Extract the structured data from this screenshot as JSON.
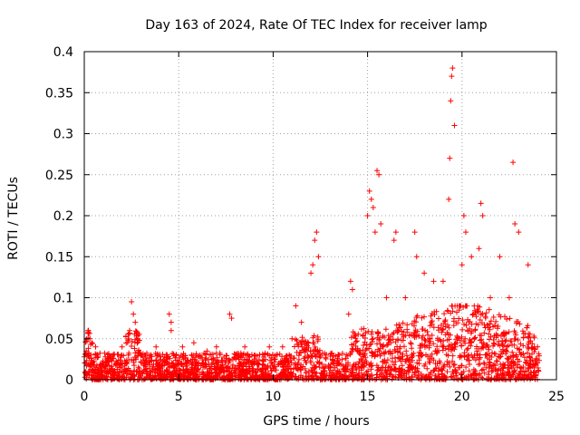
{
  "chart_data": {
    "type": "scatter",
    "title": "Day 163 of 2024, Rate Of TEC Index for receiver lamp",
    "xlabel": "GPS time / hours",
    "ylabel": "ROTI / TECUs",
    "xlim": [
      0,
      25
    ],
    "ylim": [
      0,
      0.4
    ],
    "xticks": [
      0,
      5,
      10,
      15,
      20,
      25
    ],
    "xtick_labels": [
      "0",
      "5",
      "10",
      "15",
      "20",
      "25"
    ],
    "yticks": [
      0,
      0.05,
      0.1,
      0.15,
      0.2,
      0.25,
      0.3,
      0.35,
      0.4
    ],
    "ytick_labels": [
      "0",
      "0.05",
      "0.1",
      "0.15",
      "0.2",
      "0.25",
      "0.3",
      "0.35",
      "0.4"
    ],
    "grid": true,
    "marker": "+",
    "series": [
      {
        "name": "ROTI",
        "color": "#ff0000",
        "x": [
          0.2,
          0.3,
          0.4,
          0.6,
          1.0,
          1.5,
          2.0,
          2.4,
          2.5,
          2.6,
          2.7,
          3.2,
          3.8,
          4.5,
          4.6,
          4.6,
          5.2,
          5.8,
          6.5,
          7.0,
          7.7,
          7.8,
          8.5,
          9.0,
          9.8,
          10.5,
          11.0,
          11.2,
          11.5,
          12.0,
          12.1,
          12.2,
          12.3,
          12.4,
          13.5,
          14.0,
          14.1,
          14.2,
          15.0,
          15.1,
          15.2,
          15.3,
          15.4,
          15.5,
          15.6,
          15.7,
          16.0,
          16.4,
          16.5,
          17.0,
          17.5,
          17.6,
          18.0,
          18.5,
          19.0,
          19.3,
          19.35,
          19.4,
          19.45,
          19.5,
          19.6,
          20.0,
          20.1,
          20.2,
          20.5,
          20.9,
          21.0,
          21.1,
          21.5,
          22.0,
          22.5,
          22.7,
          22.8,
          23.0,
          23.5,
          24.0
        ],
        "y": [
          0.06,
          0.05,
          0.045,
          0.04,
          0.02,
          0.03,
          0.04,
          0.06,
          0.095,
          0.08,
          0.07,
          0.03,
          0.04,
          0.08,
          0.07,
          0.06,
          0.04,
          0.045,
          0.035,
          0.04,
          0.08,
          0.075,
          0.04,
          0.03,
          0.04,
          0.04,
          0.05,
          0.09,
          0.07,
          0.13,
          0.14,
          0.17,
          0.18,
          0.15,
          0.03,
          0.08,
          0.12,
          0.11,
          0.2,
          0.23,
          0.22,
          0.21,
          0.18,
          0.255,
          0.25,
          0.19,
          0.1,
          0.17,
          0.18,
          0.1,
          0.18,
          0.15,
          0.13,
          0.12,
          0.12,
          0.22,
          0.27,
          0.34,
          0.37,
          0.38,
          0.31,
          0.14,
          0.2,
          0.18,
          0.15,
          0.16,
          0.215,
          0.2,
          0.1,
          0.15,
          0.1,
          0.265,
          0.19,
          0.18,
          0.14,
          0.04
        ]
      }
    ]
  }
}
